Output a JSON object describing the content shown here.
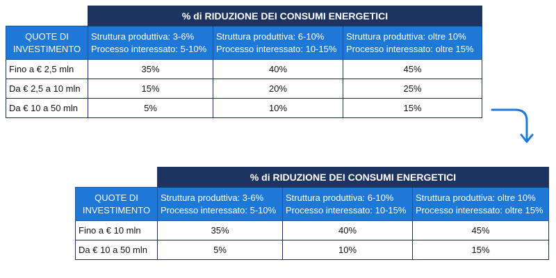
{
  "table_before": {
    "title": "% di RIDUZIONE DEI CONSUMI ENERGETICI",
    "row_header": [
      "QUOTE DI",
      "INVESTIMENTO"
    ],
    "columns": [
      {
        "line1": "Struttura produttiva: 3-6%",
        "line2": "Processo interessato: 5-10%"
      },
      {
        "line1": "Struttura produttiva: 6-10%",
        "line2": "Processo interessato: 10-15%"
      },
      {
        "line1": "Struttura produttiva: oltre 10%",
        "line2": "Processo interessato: oltre 15%"
      }
    ],
    "rows": [
      {
        "label": "Fino a € 2,5 mln",
        "values": [
          "35%",
          "40%",
          "45%"
        ]
      },
      {
        "label": "Da € 2,5 a 10 mln",
        "values": [
          "15%",
          "20%",
          "25%"
        ]
      },
      {
        "label": "Da € 10 a 50 mln",
        "values": [
          "5%",
          "10%",
          "15%"
        ]
      }
    ]
  },
  "table_after": {
    "title": "% di RIDUZIONE DEI CONSUMI ENERGETICI",
    "row_header": [
      "QUOTE DI",
      "INVESTIMENTO"
    ],
    "columns": [
      {
        "line1": "Struttura produttiva: 3-6%",
        "line2": "Processo interessato: 5-10%"
      },
      {
        "line1": "Struttura produttiva: 6-10%",
        "line2": "Processo interessato: 10-15%"
      },
      {
        "line1": "Struttura produttiva: oltre 10%",
        "line2": "Processo interessato: oltre 15%"
      }
    ],
    "rows": [
      {
        "label": "Fino a € 10 mln",
        "values": [
          "35%",
          "40%",
          "45%"
        ]
      },
      {
        "label": "Da € 10 a 50 mln",
        "values": [
          "5%",
          "10%",
          "15%"
        ]
      }
    ]
  },
  "arrow": {
    "icon": "curved-arrow-down-icon",
    "color": "#1e78d8"
  },
  "colors": {
    "title_bg": "#1d3461",
    "header_bg": "#1e78d8",
    "border": "#1a2f55"
  }
}
